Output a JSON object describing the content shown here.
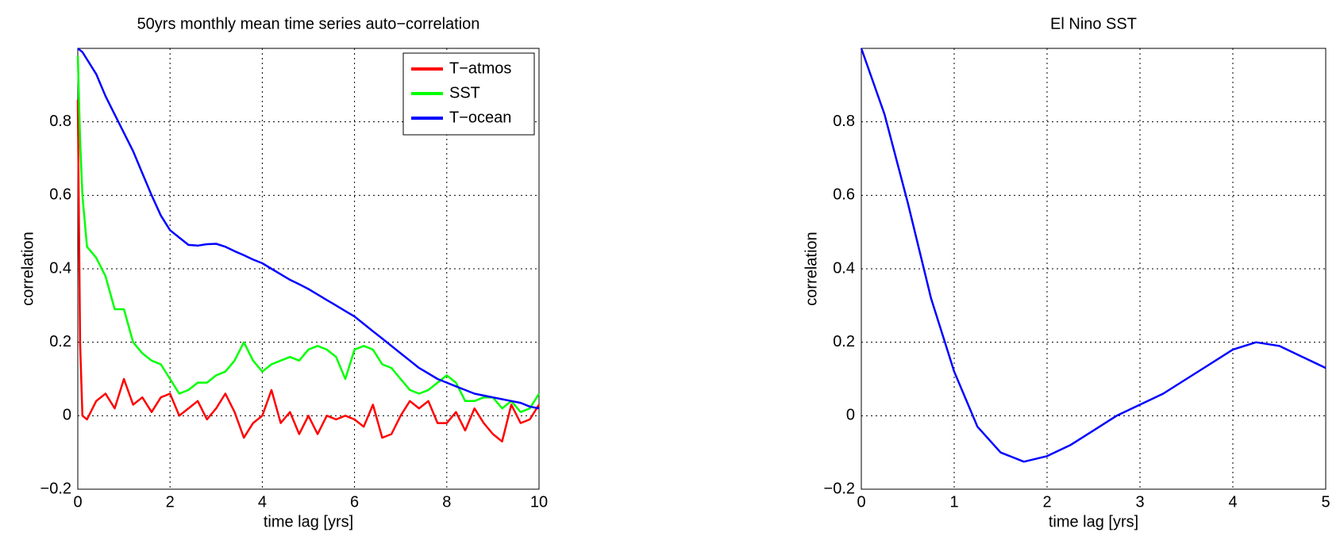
{
  "chart_data": [
    {
      "type": "line",
      "title": "50yrs monthly mean time series auto−correlation",
      "xlabel": "time lag [yrs]",
      "ylabel": "correlation",
      "x": [
        0,
        0.05,
        0.1,
        0.2,
        0.4,
        0.6,
        0.8,
        1,
        1.2,
        1.4,
        1.6,
        1.8,
        2,
        2.2,
        2.4,
        2.6,
        2.8,
        3,
        3.2,
        3.4,
        3.6,
        3.8,
        4,
        4.2,
        4.4,
        4.6,
        4.8,
        5,
        5.2,
        5.4,
        5.6,
        5.8,
        6,
        6.2,
        6.4,
        6.6,
        6.8,
        7,
        7.2,
        7.4,
        7.6,
        7.8,
        8,
        8.2,
        8.4,
        8.6,
        8.8,
        9,
        9.2,
        9.4,
        9.6,
        9.8,
        10
      ],
      "series": [
        {
          "name": "T−atmos",
          "color": "#ff0000",
          "values": [
            0.86,
            0.2,
            0,
            -0.01,
            0.04,
            0.06,
            0.02,
            0.1,
            0.03,
            0.05,
            0.01,
            0.05,
            0.06,
            0,
            0.02,
            0.04,
            -0.01,
            0.02,
            0.06,
            0.01,
            -0.06,
            -0.02,
            0,
            0.07,
            -0.02,
            0.01,
            -0.05,
            0,
            -0.05,
            0,
            -0.01,
            0,
            -0.01,
            -0.03,
            0.03,
            -0.06,
            -0.05,
            0,
            0.04,
            0.02,
            0.04,
            -0.02,
            -0.02,
            0.01,
            -0.04,
            0.02,
            -0.02,
            -0.05,
            -0.07,
            0.03,
            -0.02,
            -0.01,
            0.03
          ]
        },
        {
          "name": "SST",
          "color": "#00ff00",
          "values": [
            0.98,
            0.75,
            0.6,
            0.46,
            0.43,
            0.38,
            0.29,
            0.29,
            0.2,
            0.17,
            0.15,
            0.14,
            0.1,
            0.06,
            0.07,
            0.09,
            0.09,
            0.11,
            0.12,
            0.15,
            0.2,
            0.15,
            0.12,
            0.14,
            0.15,
            0.16,
            0.15,
            0.18,
            0.19,
            0.18,
            0.16,
            0.1,
            0.18,
            0.19,
            0.18,
            0.14,
            0.13,
            0.1,
            0.07,
            0.06,
            0.07,
            0.09,
            0.11,
            0.09,
            0.04,
            0.04,
            0.05,
            0.05,
            0.02,
            0.04,
            0.01,
            0.02,
            0.06
          ]
        },
        {
          "name": "T−ocean",
          "color": "#0000ff",
          "values": [
            1.0,
            0.995,
            0.99,
            0.97,
            0.93,
            0.87,
            0.82,
            0.77,
            0.72,
            0.66,
            0.6,
            0.545,
            0.505,
            0.485,
            0.465,
            0.463,
            0.467,
            0.468,
            0.46,
            0.448,
            0.437,
            0.425,
            0.415,
            0.4,
            0.385,
            0.37,
            0.358,
            0.345,
            0.33,
            0.315,
            0.3,
            0.285,
            0.27,
            0.25,
            0.23,
            0.21,
            0.19,
            0.17,
            0.15,
            0.13,
            0.115,
            0.1,
            0.09,
            0.08,
            0.07,
            0.06,
            0.055,
            0.05,
            0.045,
            0.04,
            0.035,
            0.025,
            0.02
          ]
        }
      ],
      "xlim": [
        0,
        10
      ],
      "xticks": [
        0,
        2,
        4,
        6,
        8,
        10
      ],
      "ylim": [
        -0.2,
        1.0
      ],
      "yticks": [
        {
          "value": -0.2,
          "label": "−0.2"
        },
        0,
        0.2,
        0.4,
        0.6,
        0.8
      ],
      "grid": true,
      "legend": "upper right"
    },
    {
      "type": "line",
      "title": "El Nino SST",
      "xlabel": "time lag [yrs]",
      "ylabel": "correlation",
      "x": [
        0,
        0.25,
        0.5,
        0.75,
        1,
        1.25,
        1.5,
        1.75,
        2,
        2.25,
        2.5,
        2.75,
        3,
        3.25,
        3.5,
        3.75,
        4,
        4.25,
        4.5,
        4.75,
        5
      ],
      "values": [
        1.0,
        0.82,
        0.58,
        0.32,
        0.12,
        -0.03,
        -0.1,
        -0.125,
        -0.11,
        -0.08,
        -0.04,
        0,
        0.03,
        0.06,
        0.1,
        0.14,
        0.18,
        0.2,
        0.19,
        0.16,
        0.13
      ],
      "color": "#0000ff",
      "xlim": [
        0,
        5
      ],
      "xticks": [
        0,
        1,
        2,
        3,
        4,
        5
      ],
      "ylim": [
        -0.2,
        1.0
      ],
      "yticks": [
        {
          "value": -0.2,
          "label": "−0.2"
        },
        0,
        0.2,
        0.4,
        0.6,
        0.8
      ],
      "grid": true
    }
  ]
}
